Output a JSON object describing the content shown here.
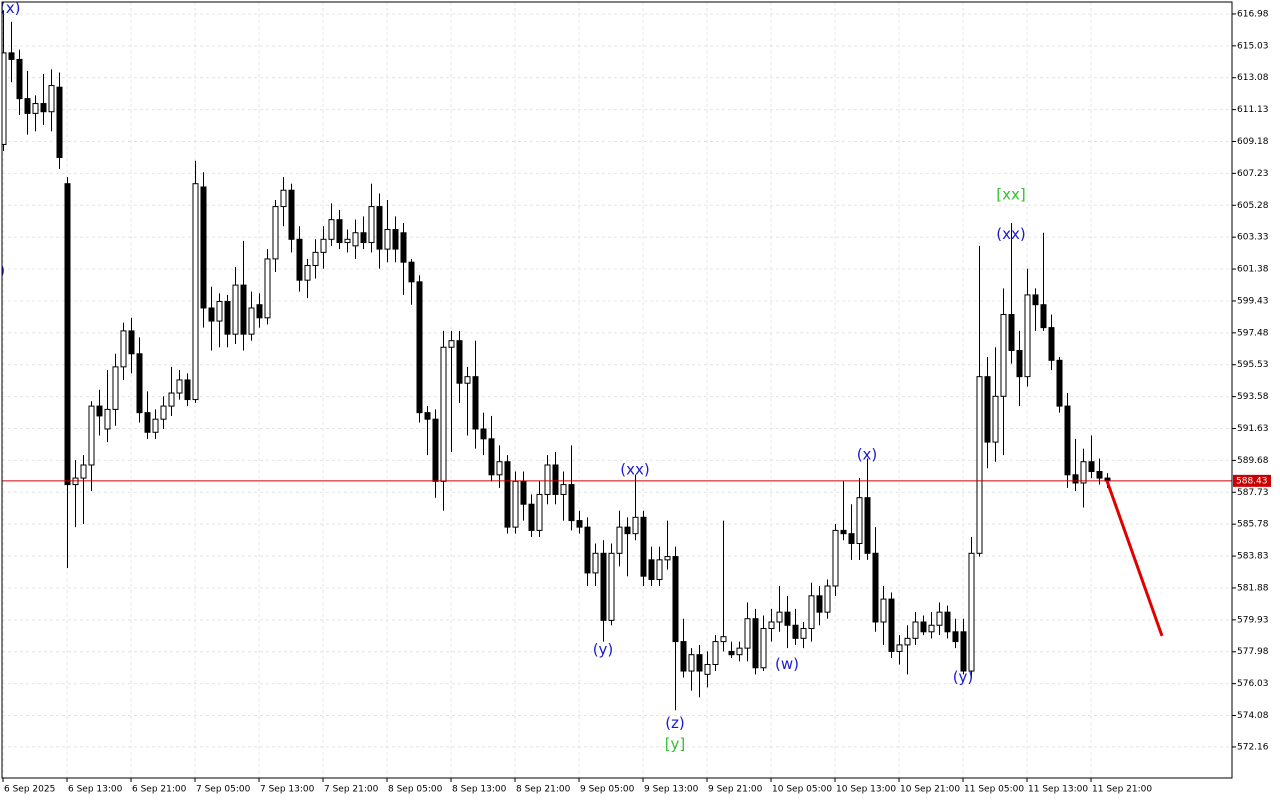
{
  "chart_data": {
    "type": "candlestick",
    "xlim": [
      -0.125,
      153.625
    ],
    "ylim": [
      570.26,
      617.71
    ],
    "yticks": [
      {
        "value": 616.98,
        "label": "616.98"
      },
      {
        "value": 615.03,
        "label": "615.03"
      },
      {
        "value": 613.08,
        "label": "613.08"
      },
      {
        "value": 611.13,
        "label": "611.13"
      },
      {
        "value": 609.18,
        "label": "609.18"
      },
      {
        "value": 607.23,
        "label": "607.23"
      },
      {
        "value": 605.28,
        "label": "605.28"
      },
      {
        "value": 603.33,
        "label": "603.33"
      },
      {
        "value": 601.38,
        "label": "601.38"
      },
      {
        "value": 599.43,
        "label": "599.43"
      },
      {
        "value": 597.48,
        "label": "597.48"
      },
      {
        "value": 595.53,
        "label": "595.53"
      },
      {
        "value": 593.58,
        "label": "593.58"
      },
      {
        "value": 591.63,
        "label": "591.63"
      },
      {
        "value": 589.68,
        "label": "589.68"
      },
      {
        "value": 587.73,
        "label": "587.73"
      },
      {
        "value": 585.78,
        "label": "585.78"
      },
      {
        "value": 583.83,
        "label": "583.83"
      },
      {
        "value": 581.88,
        "label": "581.88"
      },
      {
        "value": 579.93,
        "label": "579.93"
      },
      {
        "value": 577.98,
        "label": "577.98"
      },
      {
        "value": 576.03,
        "label": "576.03"
      },
      {
        "value": 574.08,
        "label": "574.08"
      },
      {
        "value": 572.16,
        "label": "572.16"
      }
    ],
    "xticks": [
      {
        "value": 0,
        "label": "6 Sep 2025"
      },
      {
        "value": 8,
        "label": "6 Sep 13:00"
      },
      {
        "value": 16,
        "label": "6 Sep 21:00"
      },
      {
        "value": 24,
        "label": "7 Sep 05:00"
      },
      {
        "value": 32,
        "label": "7 Sep 13:00"
      },
      {
        "value": 40,
        "label": "7 Sep 21:00"
      },
      {
        "value": 48,
        "label": "8 Sep 05:00"
      },
      {
        "value": 56,
        "label": "8 Sep 13:00"
      },
      {
        "value": 64,
        "label": "8 Sep 21:00"
      },
      {
        "value": 72,
        "label": "9 Sep 05:00"
      },
      {
        "value": 80,
        "label": "9 Sep 13:00"
      },
      {
        "value": 88,
        "label": "9 Sep 21:00"
      },
      {
        "value": 96,
        "label": "10 Sep 05:00"
      },
      {
        "value": 104,
        "label": "10 Sep 13:00"
      },
      {
        "value": 112,
        "label": "10 Sep 21:00"
      },
      {
        "value": 120,
        "label": "11 Sep 05:00"
      },
      {
        "value": 128,
        "label": "11 Sep 13:00"
      },
      {
        "value": 136,
        "label": "11 Sep 21:00"
      }
    ],
    "grid": true,
    "up_color": "#ffffff",
    "down_color": "#000000",
    "open": [
      609.0,
      614.6,
      614.2,
      611.8,
      610.9,
      611.5,
      611.0,
      612.5,
      606.6,
      588.2,
      588.6,
      589.4,
      593.0,
      591.6,
      592.8,
      595.4,
      597.6,
      596.2,
      592.6,
      591.4,
      592.2,
      593.0,
      593.8,
      594.6,
      593.4,
      606.4,
      599.0,
      598.2,
      599.4,
      597.4,
      600.4,
      597.4,
      599.2,
      598.4,
      602.0,
      605.2,
      606.2,
      603.2,
      600.7,
      601.6,
      602.4,
      603.2,
      604.4,
      603.0,
      602.8,
      603.6,
      603.0,
      605.2,
      602.6,
      603.8,
      603.6,
      601.8,
      600.6,
      592.6,
      592.2,
      588.4,
      596.6,
      597.0,
      594.4,
      594.8,
      591.6,
      591.0,
      588.8,
      589.6,
      585.6,
      588.4,
      587.0,
      585.4,
      587.6,
      589.4,
      587.6,
      588.2,
      586.0,
      585.6,
      582.8,
      584.0,
      579.9,
      584.0,
      585.6,
      585.2,
      586.2,
      583.6,
      582.4,
      583.6,
      583.8,
      578.6,
      576.8,
      577.8,
      576.6,
      577.2,
      578.6,
      578.0,
      577.8,
      578.2,
      580.0,
      577.0,
      579.4,
      579.8,
      580.4,
      579.6,
      578.8,
      579.4,
      581.4,
      580.4,
      582.0,
      585.4,
      585.2,
      584.6,
      587.4,
      584.0,
      579.8,
      581.2,
      578.0,
      578.4,
      578.8,
      579.8,
      579.2,
      579.6,
      580.4,
      579.2,
      579.2,
      576.8,
      584.0,
      594.8,
      590.8,
      593.6,
      598.6,
      596.4,
      594.8,
      599.8,
      599.2,
      597.8,
      595.8,
      593.0,
      588.8,
      588.3,
      589.6,
      589.0,
      588.6
    ],
    "high": [
      617.2,
      616.5,
      614.8,
      613.5,
      612.0,
      613.3,
      613.6,
      613.4,
      607.0,
      589.7,
      590.0,
      593.3,
      594.0,
      595.2,
      596.2,
      598.1,
      598.4,
      597.2,
      593.9,
      592.8,
      593.6,
      595.4,
      595.2,
      595.0,
      608.0,
      607.3,
      600.3,
      599.9,
      599.8,
      601.5,
      603.1,
      600.0,
      599.9,
      602.6,
      605.6,
      607.0,
      606.6,
      604.0,
      602.0,
      603.2,
      604.0,
      605.4,
      605.0,
      603.8,
      604.4,
      604.6,
      606.6,
      606.0,
      605.6,
      604.6,
      604.2,
      602.0,
      601.0,
      593.0,
      592.8,
      597.6,
      597.6,
      597.6,
      595.4,
      597.0,
      592.6,
      592.4,
      590.6,
      590.0,
      589.0,
      589.0,
      587.6,
      588.4,
      590.0,
      590.2,
      589.0,
      590.6,
      586.6,
      586.2,
      584.6,
      584.8,
      584.6,
      586.6,
      586.2,
      588.8,
      586.6,
      584.4,
      584.4,
      586.0,
      584.4,
      580.0,
      578.2,
      578.4,
      578.0,
      579.0,
      586.0,
      578.6,
      578.6,
      581.0,
      580.6,
      580.2,
      580.6,
      582.0,
      581.4,
      580.6,
      579.8,
      582.2,
      582.0,
      582.4,
      585.8,
      588.4,
      587.0,
      588.6,
      589.8,
      585.6,
      582.0,
      581.6,
      579.0,
      579.6,
      580.4,
      580.2,
      580.4,
      581.0,
      580.8,
      580.0,
      580.0,
      585.0,
      602.8,
      596.0,
      596.6,
      600.2,
      604.2,
      597.6,
      601.4,
      600.2,
      603.6,
      598.6,
      596.0,
      593.8,
      591.0,
      590.4,
      591.2,
      589.8,
      588.9
    ],
    "low": [
      608.6,
      612.8,
      610.8,
      609.6,
      609.8,
      610.2,
      609.8,
      607.5,
      583.1,
      585.6,
      585.8,
      587.8,
      591.2,
      590.8,
      591.8,
      594.6,
      595.0,
      592.0,
      591.0,
      591.0,
      591.6,
      592.4,
      593.4,
      593.0,
      593.2,
      597.8,
      596.4,
      596.6,
      596.6,
      596.8,
      596.4,
      597.0,
      597.8,
      598.0,
      601.2,
      604.0,
      602.4,
      600.0,
      599.6,
      600.8,
      601.4,
      602.8,
      602.6,
      602.4,
      602.0,
      602.6,
      602.4,
      601.4,
      601.8,
      601.8,
      599.8,
      599.2,
      592.0,
      590.0,
      587.4,
      586.6,
      590.2,
      593.2,
      591.2,
      590.4,
      590.0,
      588.4,
      588.0,
      585.2,
      585.2,
      586.0,
      585.0,
      585.0,
      587.0,
      587.0,
      586.0,
      585.4,
      585.2,
      582.0,
      582.0,
      578.6,
      579.6,
      583.2,
      582.6,
      584.8,
      582.0,
      582.0,
      582.0,
      583.0,
      574.4,
      576.4,
      575.6,
      575.2,
      575.8,
      576.8,
      578.0,
      577.6,
      577.4,
      577.4,
      576.6,
      576.8,
      578.6,
      579.2,
      578.2,
      578.4,
      578.2,
      578.6,
      579.6,
      580.0,
      581.4,
      584.8,
      583.6,
      583.6,
      583.6,
      579.2,
      578.4,
      577.6,
      577.2,
      576.6,
      578.4,
      579.0,
      578.8,
      579.0,
      578.8,
      578.2,
      576.6,
      576.4,
      583.8,
      589.2,
      589.6,
      590.0,
      595.6,
      593.0,
      594.2,
      597.6,
      597.6,
      595.2,
      592.6,
      588.0,
      587.8,
      586.8,
      588.6,
      588.2,
      588.0
    ],
    "close": [
      614.6,
      614.2,
      611.8,
      610.9,
      611.5,
      611.0,
      612.6,
      608.2,
      588.2,
      588.6,
      589.4,
      593.0,
      592.4,
      592.8,
      595.4,
      597.6,
      596.2,
      592.6,
      591.4,
      592.2,
      593.0,
      593.8,
      594.6,
      593.4,
      606.6,
      599.0,
      598.2,
      599.4,
      597.4,
      600.4,
      597.4,
      599.0,
      598.4,
      602.0,
      605.2,
      606.2,
      603.2,
      600.7,
      601.6,
      602.4,
      603.2,
      604.4,
      603.0,
      603.2,
      603.6,
      603.0,
      605.2,
      602.6,
      603.8,
      602.6,
      601.8,
      600.6,
      592.6,
      592.2,
      588.4,
      596.6,
      597.0,
      594.4,
      594.8,
      591.6,
      591.0,
      588.8,
      589.6,
      585.6,
      588.4,
      587.0,
      585.4,
      587.6,
      589.4,
      587.6,
      588.2,
      586.0,
      585.6,
      582.8,
      584.0,
      579.9,
      584.0,
      585.6,
      585.2,
      586.2,
      582.6,
      582.4,
      583.6,
      583.8,
      578.6,
      576.8,
      577.8,
      576.8,
      577.2,
      578.6,
      578.9,
      577.8,
      578.2,
      580.0,
      577.0,
      579.4,
      579.8,
      580.4,
      579.6,
      578.8,
      579.4,
      581.4,
      580.4,
      582.0,
      585.4,
      585.2,
      584.6,
      587.4,
      584.0,
      579.8,
      581.2,
      578.0,
      578.4,
      578.8,
      579.8,
      579.2,
      579.6,
      580.4,
      579.2,
      578.6,
      576.8,
      584.0,
      594.8,
      590.8,
      593.6,
      598.6,
      596.4,
      594.8,
      599.8,
      599.2,
      597.8,
      595.8,
      593.0,
      588.8,
      588.3,
      589.6,
      589.0,
      588.6,
      588.43
    ],
    "current_price": 588.43,
    "current_price_color": "#cc0000",
    "forecast": {
      "x": [
        138,
        144.875
      ],
      "y": [
        588.43,
        578.95
      ],
      "color": "#e00000"
    },
    "annotations": [
      {
        "text": "(x)",
        "x": 0.9,
        "y": 617.3,
        "color": "#1a1ad6"
      },
      {
        "text": ")",
        "x": -0.1,
        "y": 601.25,
        "color": "#1a1ad6"
      },
      {
        "text": "(xx)",
        "x": 79,
        "y": 589.1,
        "color": "#1a1ad6"
      },
      {
        "text": "(y)",
        "x": 75,
        "y": 578.1,
        "color": "#1a1ad6"
      },
      {
        "text": "(z)",
        "x": 84,
        "y": 573.6,
        "color": "#1a1ad6"
      },
      {
        "text": "[y]",
        "x": 84,
        "y": 572.3,
        "color": "#33c033"
      },
      {
        "text": "(w)",
        "x": 98,
        "y": 577.2,
        "color": "#1a1ad6"
      },
      {
        "text": "(x)",
        "x": 108,
        "y": 590.0,
        "color": "#1a1ad6"
      },
      {
        "text": "(y)",
        "x": 120,
        "y": 576.4,
        "color": "#1a1ad6"
      },
      {
        "text": "(xx)",
        "x": 126,
        "y": 603.5,
        "color": "#1a1ad6"
      },
      {
        "text": "[xx]",
        "x": 126,
        "y": 605.9,
        "color": "#33c033"
      }
    ]
  }
}
